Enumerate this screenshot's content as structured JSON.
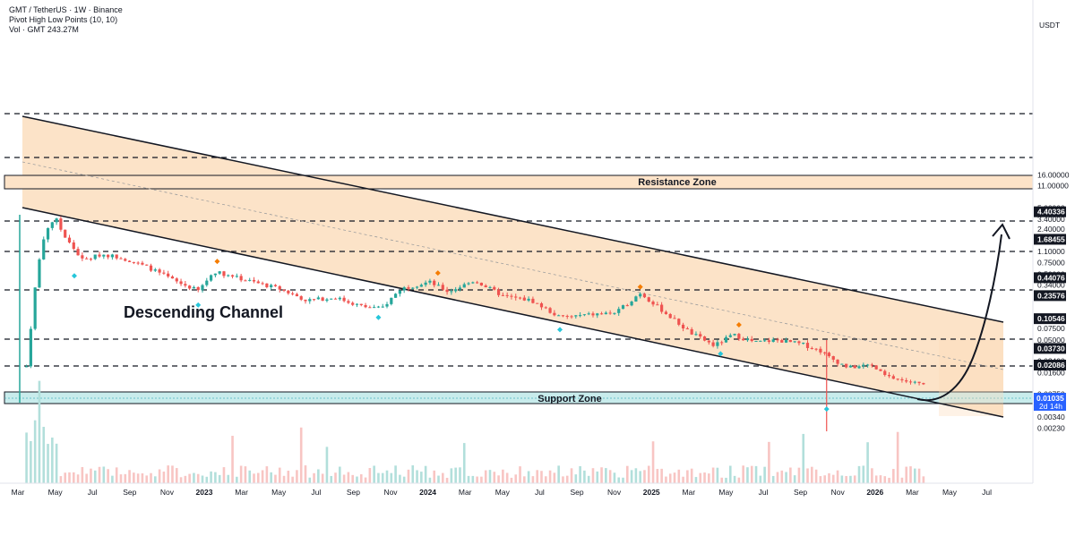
{
  "header": {
    "symbol_line": "GMT / TetherUS · 1W · Binance",
    "indicator_line": "Pivot High Low Points (10, 10)",
    "volume_line": "Vol · GMT  243.27M"
  },
  "currency": "USDT",
  "colors": {
    "up": "#26a69a",
    "down": "#ef5350",
    "channel_fill": "#fbd9b6",
    "resistance_fill": "#fde3c8",
    "support_fill": "#c8ecec",
    "badge": "#131722",
    "current_badge": "#2962ff",
    "pivot_high": "#f57c00",
    "pivot_low": "#26c6da"
  },
  "chart_data": {
    "type": "candlestick",
    "y_scale": "log",
    "ylim": [
      0.0019,
      30
    ],
    "x_range": [
      "2022-03-01",
      "2026-07-15"
    ],
    "y_ticks": [
      "16.00000",
      "11.00000",
      "5.00000",
      "3.40000",
      "2.40000",
      "1.10000",
      "0.75000",
      "0.50000",
      "0.34000",
      "0.07500",
      "0.05000",
      "0.02400",
      "0.01600",
      "0.00750",
      "0.00500",
      "0.00340",
      "0.00230"
    ],
    "x_ticks": [
      "Mar",
      "May",
      "Jul",
      "Sep",
      "Nov",
      "2023",
      "Mar",
      "May",
      "Jul",
      "Sep",
      "Nov",
      "2024",
      "Mar",
      "May",
      "Jul",
      "Sep",
      "Nov",
      "2025",
      "Mar",
      "May",
      "Jul",
      "Sep",
      "Nov",
      "2026",
      "Mar",
      "May",
      "Jul"
    ],
    "level_badges": [
      "4.40336",
      "1.68455",
      "0.44076",
      "0.23576",
      "0.10546",
      "0.03730",
      "0.02086"
    ],
    "current_price": "0.01035",
    "countdown": "2d 14h",
    "annotations": {
      "channel": "Descending Channel",
      "resistance": "Resistance Zone",
      "support": "Support Zone"
    },
    "closes": [
      {
        "date": "2022-03-15",
        "close": 0.02
      },
      {
        "date": "2022-04-01",
        "close": 0.55
      },
      {
        "date": "2022-04-15",
        "close": 2.3
      },
      {
        "date": "2022-05-01",
        "close": 3.6
      },
      {
        "date": "2022-05-15",
        "close": 1.9
      },
      {
        "date": "2022-06-15",
        "close": 0.8
      },
      {
        "date": "2022-07-15",
        "close": 1.0
      },
      {
        "date": "2022-08-15",
        "close": 0.9
      },
      {
        "date": "2022-10-01",
        "close": 0.62
      },
      {
        "date": "2022-11-15",
        "close": 0.38
      },
      {
        "date": "2022-12-20",
        "close": 0.28
      },
      {
        "date": "2023-01-15",
        "close": 0.55
      },
      {
        "date": "2023-03-01",
        "close": 0.42
      },
      {
        "date": "2023-05-01",
        "close": 0.3
      },
      {
        "date": "2023-06-15",
        "close": 0.2
      },
      {
        "date": "2023-08-01",
        "close": 0.22
      },
      {
        "date": "2023-09-15",
        "close": 0.16
      },
      {
        "date": "2023-10-15",
        "close": 0.15
      },
      {
        "date": "2023-11-15",
        "close": 0.3
      },
      {
        "date": "2024-01-01",
        "close": 0.38
      },
      {
        "date": "2024-02-01",
        "close": 0.27
      },
      {
        "date": "2024-03-15",
        "close": 0.4
      },
      {
        "date": "2024-05-01",
        "close": 0.23
      },
      {
        "date": "2024-06-15",
        "close": 0.2
      },
      {
        "date": "2024-08-01",
        "close": 0.11
      },
      {
        "date": "2024-09-15",
        "close": 0.12
      },
      {
        "date": "2024-11-01",
        "close": 0.13
      },
      {
        "date": "2024-12-10",
        "close": 0.26
      },
      {
        "date": "2025-01-15",
        "close": 0.14
      },
      {
        "date": "2025-03-01",
        "close": 0.065
      },
      {
        "date": "2025-04-10",
        "close": 0.041
      },
      {
        "date": "2025-05-10",
        "close": 0.06
      },
      {
        "date": "2025-06-15",
        "close": 0.046
      },
      {
        "date": "2025-07-20",
        "close": 0.05
      },
      {
        "date": "2025-09-01",
        "close": 0.043
      },
      {
        "date": "2025-10-01",
        "close": 0.034
      },
      {
        "date": "2025-10-15",
        "close": 0.027
      },
      {
        "date": "2025-11-15",
        "close": 0.019
      },
      {
        "date": "2025-12-20",
        "close": 0.021
      },
      {
        "date": "2026-01-15",
        "close": 0.014
      },
      {
        "date": "2026-02-15",
        "close": 0.012
      },
      {
        "date": "2026-03-20",
        "close": 0.01035
      }
    ]
  }
}
